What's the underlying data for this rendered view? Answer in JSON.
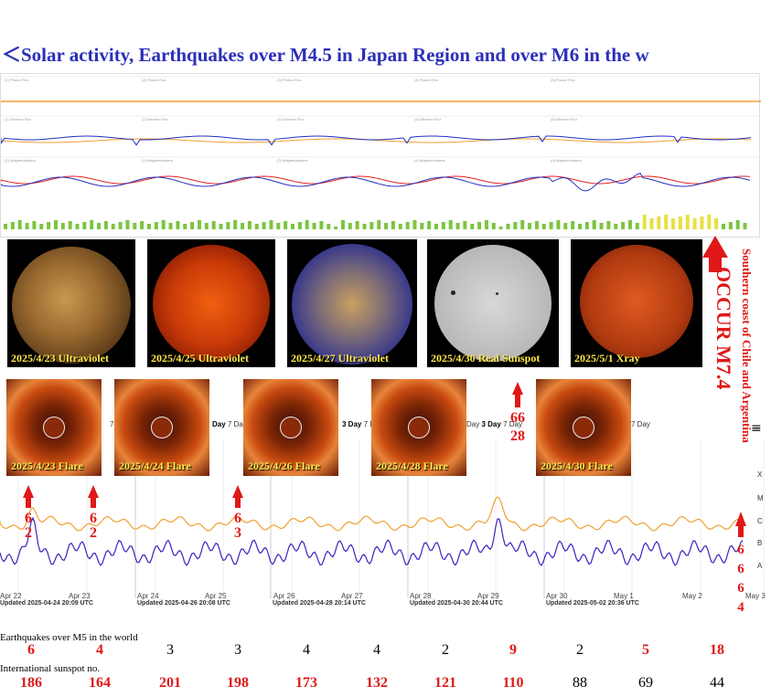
{
  "title": "＜Solar activity, Earthquakes over M4.5 in Japan Region and over M6 in the w",
  "strip_panels": {
    "row1": [
      "(1) Proton Flux",
      "(2) Proton Flux",
      "(3) Proton Flux",
      "(4) Proton Flux",
      "(5) Proton Flux"
    ],
    "row2": [
      "(1) Electron Flux",
      "(2) Electron Flux",
      "(3) Electron Flux",
      "(4) Electron Flux",
      "(5) Electron Flux"
    ],
    "row3": [
      "(1) Magnetometers",
      "(2) Magnetometers",
      "(3) Magnetometers",
      "(4) Magnetometers",
      "(5) Magnetometers"
    ]
  },
  "solar_images": [
    {
      "caption": "2025/4/23 Ultraviolet"
    },
    {
      "caption": "2025/4/25 Ultraviolet"
    },
    {
      "caption": "2025/4/27 Ultraviolet"
    },
    {
      "caption": "2025/4/30 Real Sunspot"
    },
    {
      "caption": "2025/5/1 Xray"
    }
  ],
  "flare_images": [
    {
      "caption": "2025/4/23 Flare"
    },
    {
      "caption": "2025/4/24 Flare"
    },
    {
      "caption": "2025/4/26 Flare"
    },
    {
      "caption": "2025/4/28 Flare"
    },
    {
      "caption": "2025/4/30 Flare"
    }
  ],
  "occur": {
    "location": "Southern coast of Chile and Argentina",
    "label": "OCCUR M7.4",
    "bottom_digits": [
      "6",
      "6",
      "6",
      "4"
    ]
  },
  "arrow_labels": {
    "a1": [
      "6",
      "2"
    ],
    "a2": [
      "6",
      "2"
    ],
    "a3": [
      "6",
      "3"
    ],
    "a4": [
      "66",
      "28"
    ]
  },
  "xray_chart": {
    "scale_labels": [
      "X",
      "M",
      "C",
      "B",
      "A"
    ],
    "x_ticks": [
      "Apr 22",
      "Apr 23",
      "Apr 24",
      "Apr 25",
      "Apr 26",
      "Apr 27",
      "Apr 28",
      "Apr 29",
      "Apr 30",
      "May 1",
      "May 2",
      "May 3"
    ],
    "updated": [
      "Updated 2025-04-24 20:09 UTC",
      "Updated 2025-04-26 20:08 UTC",
      "Updated 2025-04-28 20:14 UTC",
      "Updated 2025-04-30 20:44 UTC",
      "Updated 2025-05-02 20:36 UTC"
    ],
    "range_buttons": {
      "d1": "Day",
      "d3": "3 Day",
      "d7": "7 Day"
    }
  },
  "table": {
    "eq_label": "Earthquakes over M5 in the world",
    "eq_values": [
      "6",
      "4",
      "3",
      "3",
      "4",
      "4",
      "2",
      "9",
      "2",
      "5",
      "18"
    ],
    "eq_red": [
      true,
      true,
      false,
      false,
      false,
      false,
      false,
      true,
      false,
      true,
      true
    ],
    "ss_label": "International sunspot no.",
    "ss_values": [
      "186",
      "164",
      "201",
      "198",
      "173",
      "132",
      "121",
      "110",
      "88",
      "69",
      "44"
    ],
    "ss_red": [
      true,
      true,
      true,
      true,
      true,
      true,
      true,
      true,
      false,
      false,
      false
    ]
  },
  "colors": {
    "title": "#2b2fb8",
    "red": "#e01818",
    "caption": "#ffe94a",
    "orange": "#f0a030",
    "purple": "#4020c0"
  }
}
